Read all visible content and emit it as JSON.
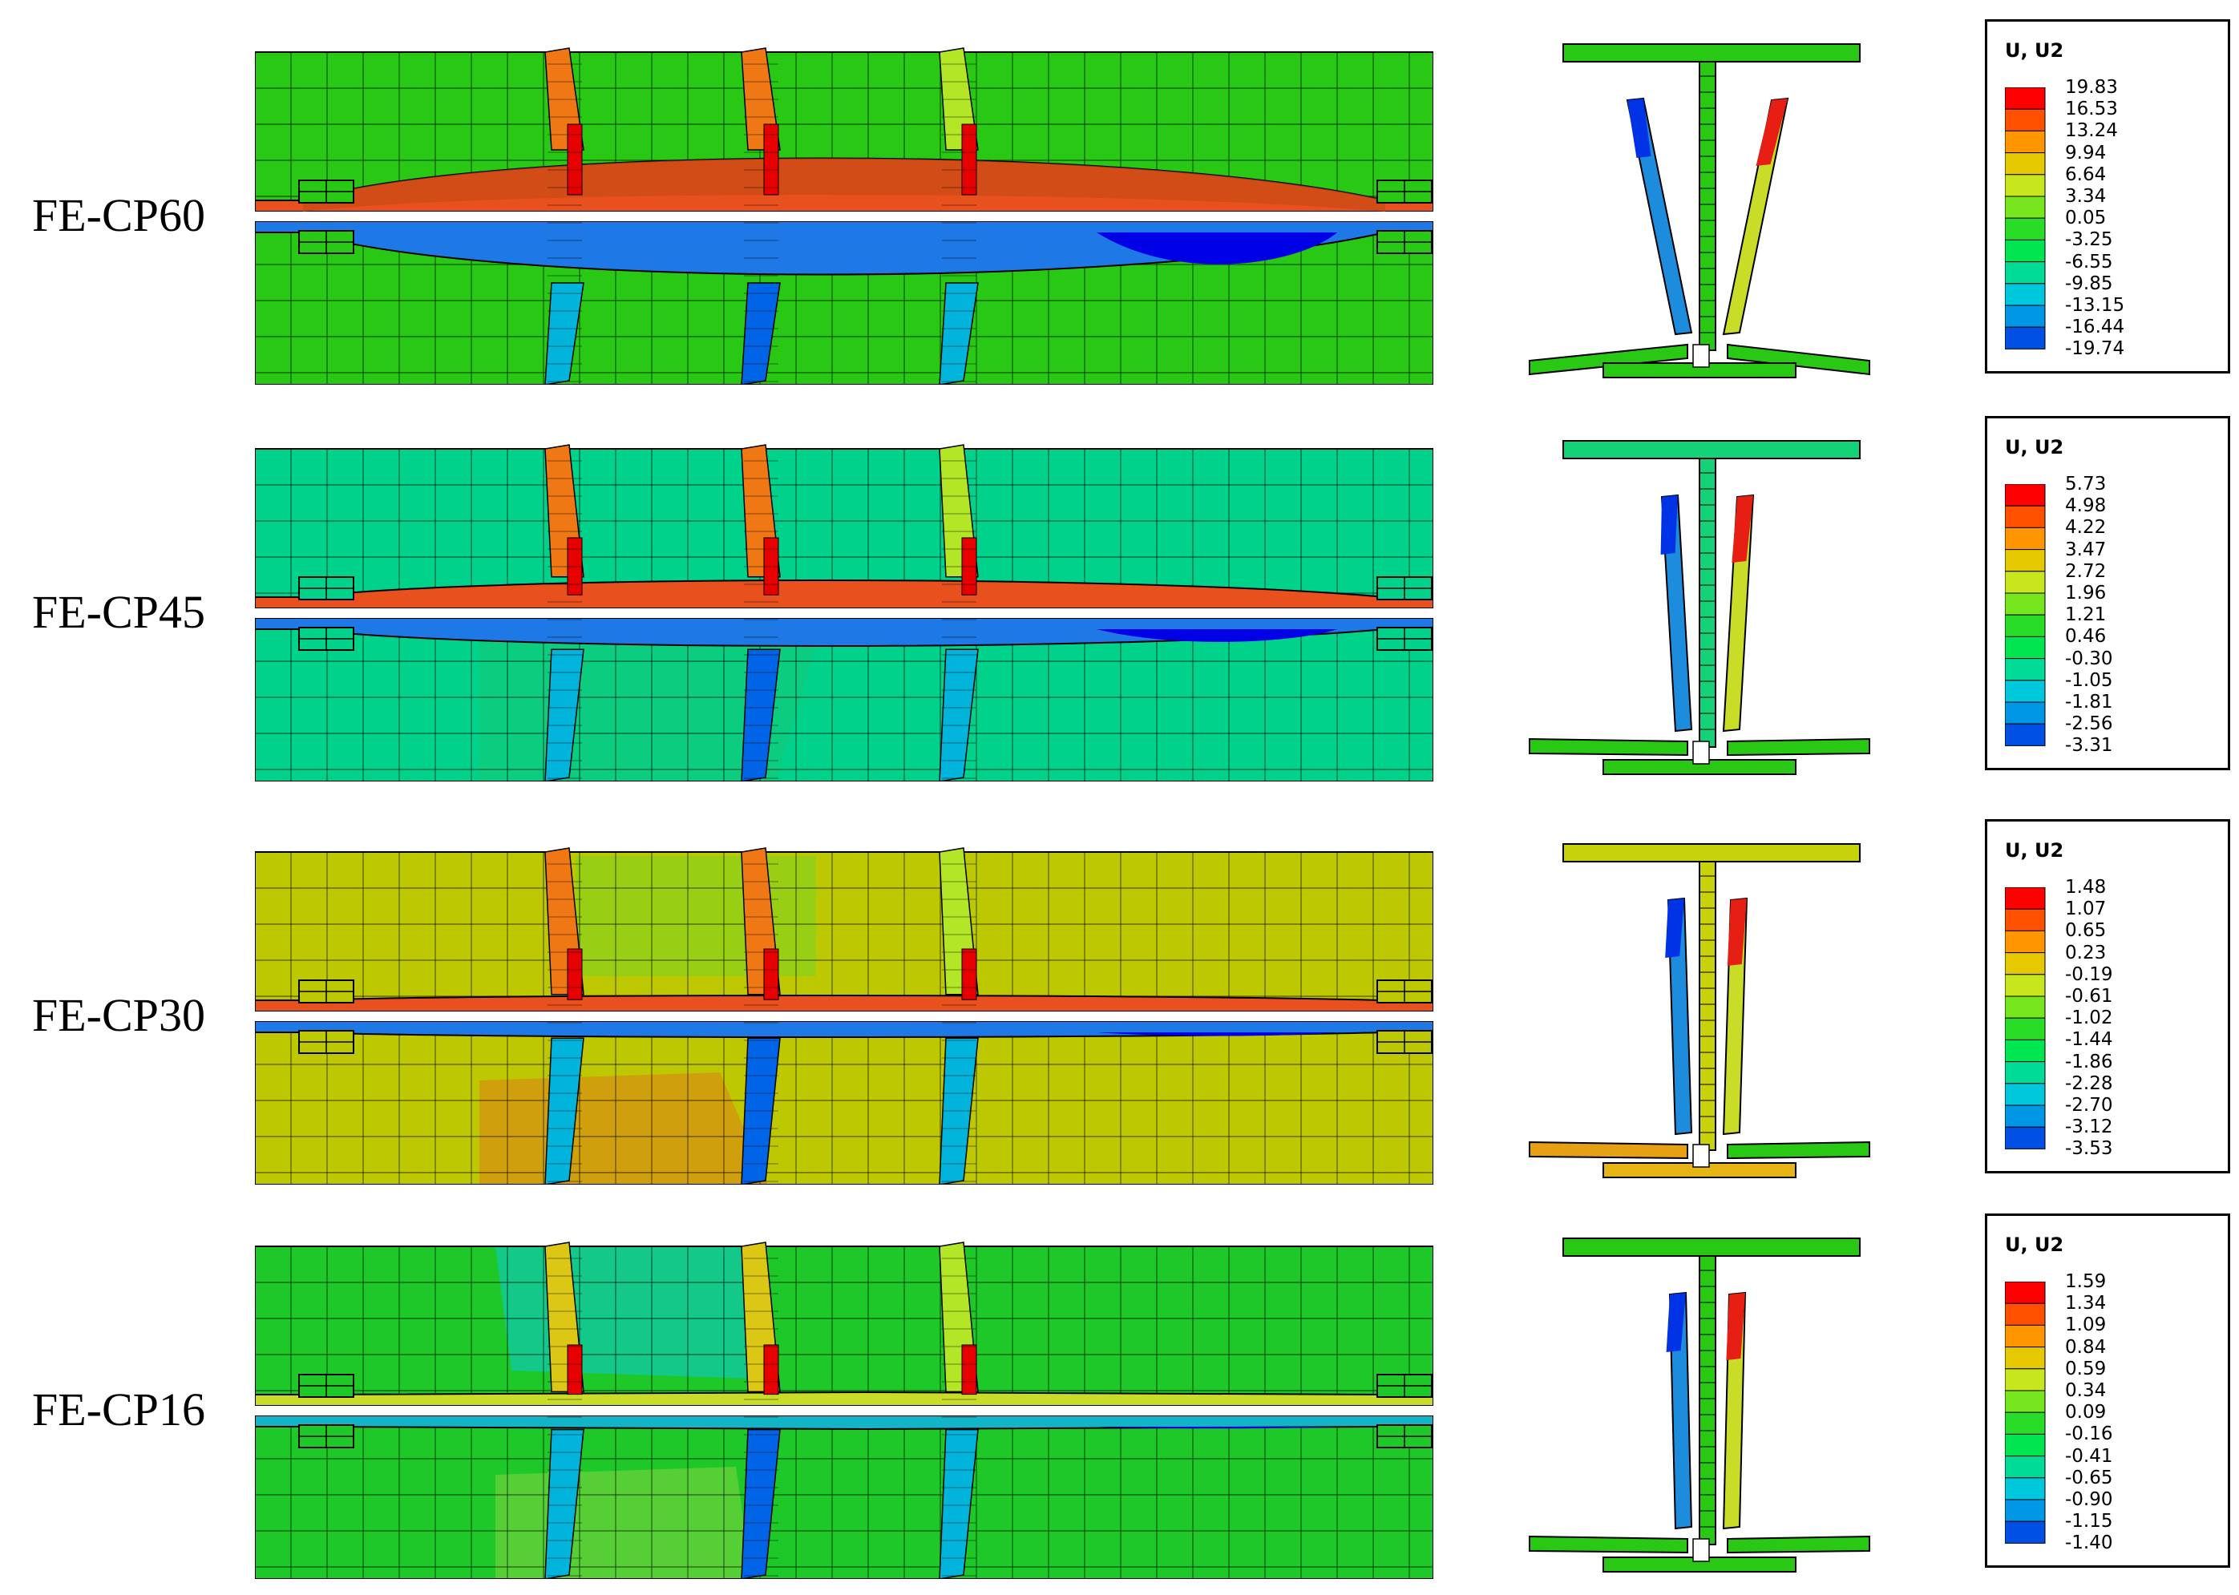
{
  "models": [
    {
      "label": "FE-CP60",
      "legend_title": "U, U2",
      "legend_values": [
        "19.83",
        "16.53",
        "13.24",
        "9.94",
        "6.64",
        "3.34",
        "0.05",
        "-3.25",
        "-6.55",
        "-9.85",
        "-13.15",
        "-16.44",
        "-19.74"
      ],
      "base_color": "#28c814",
      "deformation": "large"
    },
    {
      "label": "FE-CP45",
      "legend_title": "U, U2",
      "legend_values": [
        "5.73",
        "4.98",
        "4.22",
        "3.47",
        "2.72",
        "1.96",
        "1.21",
        "0.46",
        "-0.30",
        "-1.05",
        "-1.81",
        "-2.56",
        "-3.31"
      ],
      "base_color": "#00d28c",
      "deformation": "medium"
    },
    {
      "label": "FE-CP30",
      "legend_title": "U, U2",
      "legend_values": [
        "1.48",
        "1.07",
        "0.65",
        "0.23",
        "-0.19",
        "-0.61",
        "-1.02",
        "-1.44",
        "-1.86",
        "-2.28",
        "-2.70",
        "-3.12",
        "-3.53"
      ],
      "base_color": "#bec800",
      "deformation": "small"
    },
    {
      "label": "FE-CP16",
      "legend_title": "U, U2",
      "legend_values": [
        "1.59",
        "1.34",
        "1.09",
        "0.84",
        "0.59",
        "0.34",
        "0.09",
        "-0.16",
        "-0.41",
        "-0.65",
        "-0.90",
        "-1.15",
        "-1.40"
      ],
      "base_color": "#1ec828",
      "deformation": "minimal"
    }
  ],
  "color_scale": [
    "#ff0000",
    "#ff5000",
    "#ff9600",
    "#e6c800",
    "#c8e61e",
    "#78e61e",
    "#28dc28",
    "#00e650",
    "#00dc96",
    "#00c8dc",
    "#0096e6",
    "#0050e6",
    "#0000ff"
  ]
}
